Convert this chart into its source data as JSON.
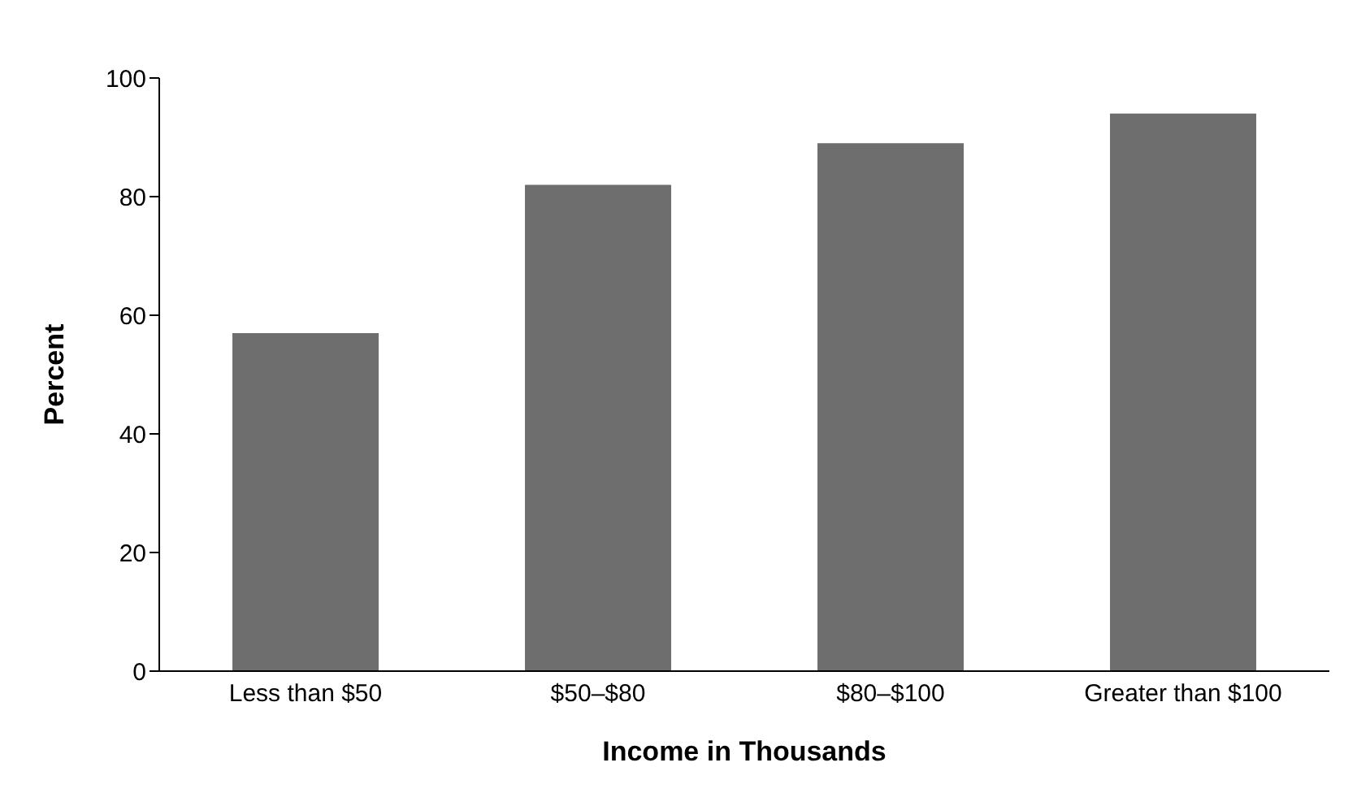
{
  "chart_data": {
    "type": "bar",
    "xlabel": "Income in Thousands",
    "ylabel": "Percent",
    "categories": [
      "Less than $50",
      "$50–$80",
      "$80–$100",
      "Greater than $100"
    ],
    "values": [
      57,
      82,
      89,
      94
    ],
    "color": "#6e6e6e",
    "ylim": [
      0,
      100
    ],
    "yticks": [
      0,
      20,
      40,
      60,
      80,
      100
    ],
    "grid": false,
    "legend": false
  }
}
